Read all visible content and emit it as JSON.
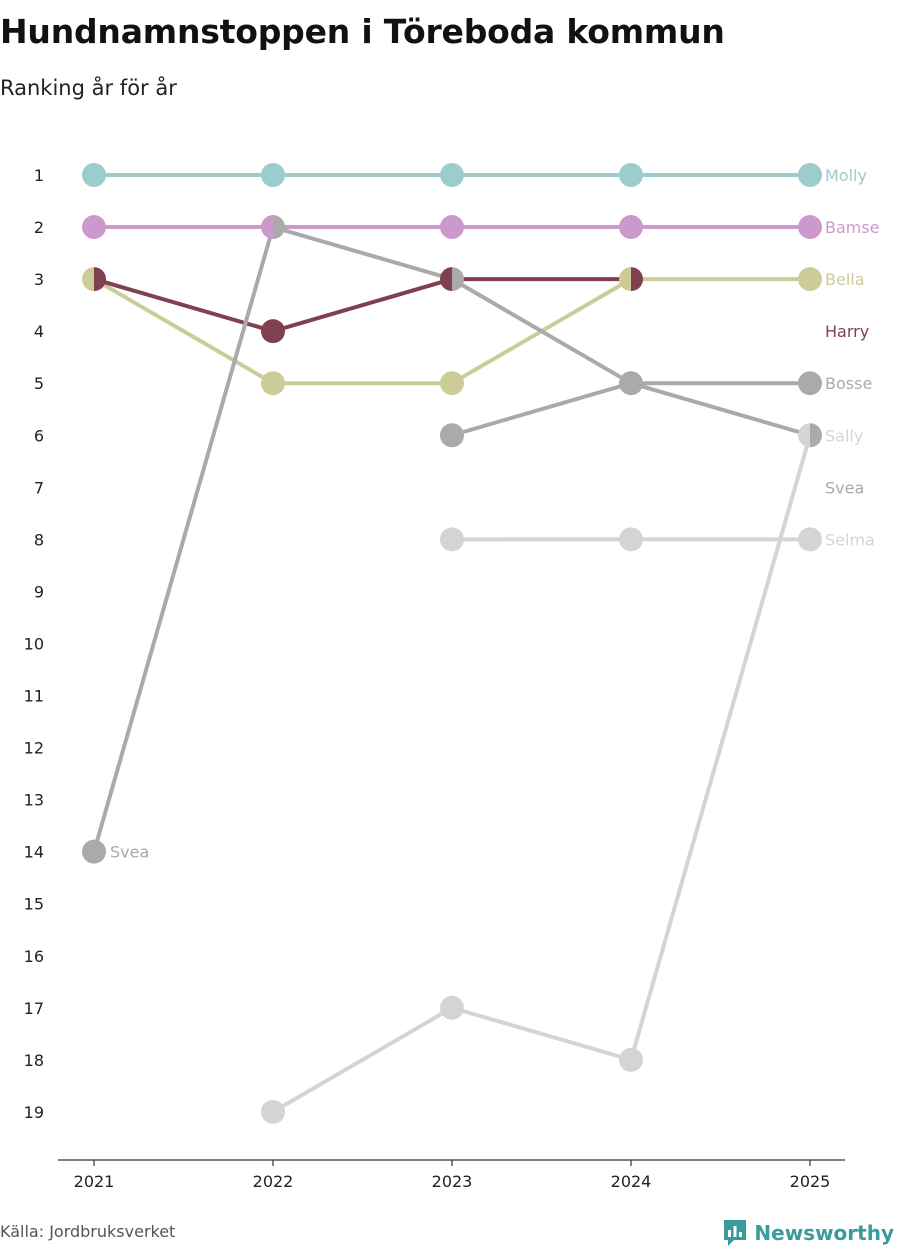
{
  "title": "Hundnamnstoppen i Töreboda kommun",
  "subtitle": "Ranking år för år",
  "source": "Källa: Jordbruksverket",
  "brand": {
    "name": "Newsworthy",
    "icon": "newsworthy-logo-icon",
    "color": "#3a9b9b"
  },
  "chart_data": {
    "type": "line",
    "title": "Hundnamnstoppen i Töreboda kommun",
    "subtitle": "Ranking år för år",
    "xlabel": "",
    "ylabel": "",
    "x": [
      "2021",
      "2022",
      "2023",
      "2024",
      "2025"
    ],
    "y_ticks": [
      1,
      2,
      3,
      4,
      5,
      6,
      7,
      8,
      9,
      10,
      11,
      12,
      13,
      14,
      15,
      16,
      17,
      18,
      19
    ],
    "ylim": [
      1,
      19
    ],
    "y_inverted": true,
    "series": [
      {
        "name": "Molly",
        "color": "#9ccccb",
        "values": [
          1,
          1,
          1,
          1,
          1
        ]
      },
      {
        "name": "Bamse",
        "color": "#cc99cc",
        "values": [
          2,
          2,
          2,
          2,
          2
        ]
      },
      {
        "name": "Bella",
        "color": "#cccc99",
        "values": [
          3,
          5,
          5,
          3,
          3
        ]
      },
      {
        "name": "Harry",
        "color": "#804050",
        "values": [
          3,
          4,
          3,
          3,
          null
        ]
      },
      {
        "name": "Bosse",
        "color": "#aaaaaa",
        "values": [
          null,
          null,
          6,
          5,
          5
        ]
      },
      {
        "name": "Sally",
        "color": "#d4d4d4",
        "values": [
          null,
          19,
          17,
          18,
          6
        ]
      },
      {
        "name": "Svea",
        "color": "#aaaaaa",
        "values": [
          14,
          2,
          3,
          5,
          6
        ]
      },
      {
        "name": "Selma",
        "color": "#d4d4d4",
        "values": [
          null,
          null,
          8,
          8,
          8
        ]
      }
    ],
    "end_labels": [
      {
        "name": "Molly",
        "rank": 1,
        "color": "#9ccccb"
      },
      {
        "name": "Bamse",
        "rank": 2,
        "color": "#cc99cc"
      },
      {
        "name": "Bella",
        "rank": 3,
        "color": "#cccc99"
      },
      {
        "name": "Harry",
        "rank": 4,
        "color": "#804050"
      },
      {
        "name": "Bosse",
        "rank": 5,
        "color": "#aaaaaa"
      },
      {
        "name": "Sally",
        "rank": 6,
        "color": "#d4d4d4"
      },
      {
        "name": "Svea",
        "rank": 7,
        "color": "#aaaaaa"
      },
      {
        "name": "Selma",
        "rank": 8,
        "color": "#d4d4d4"
      }
    ],
    "start_labels": [
      {
        "name": "Svea",
        "year": "2021",
        "rank": 14,
        "color": "#aaaaaa"
      }
    ]
  }
}
